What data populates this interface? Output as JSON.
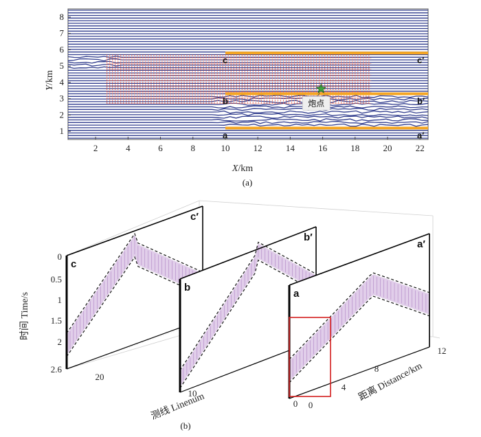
{
  "chart_data": [
    {
      "id": "map",
      "type": "scatter",
      "caption": "(a)",
      "xlabel_var": "X",
      "xlabel_unit": "/km",
      "ylabel_var": "Y",
      "ylabel_unit": "/km",
      "xlim": [
        0.3,
        22.5
      ],
      "ylim": [
        0.5,
        8.5
      ],
      "x_ticks": [
        2,
        4,
        6,
        8,
        10,
        12,
        14,
        16,
        18,
        20,
        22
      ],
      "y_ticks": [
        1,
        2,
        3,
        4,
        5,
        6,
        7,
        8
      ],
      "receiver_line_spacing_km": 0.16,
      "receiver_line_color": "#2e3a8c",
      "source_grid": {
        "x_range": [
          2.7,
          19.0
        ],
        "y_range": [
          2.7,
          5.7
        ],
        "color": "#e8604c"
      },
      "profiles": [
        {
          "label": "a",
          "label_end": "a′",
          "y": 1.2,
          "x_range": [
            10.0,
            22.5
          ]
        },
        {
          "label": "b",
          "label_end": "b′",
          "y": 3.3,
          "x_range": [
            10.0,
            22.5
          ]
        },
        {
          "label": "c",
          "label_end": "c′",
          "y": 5.8,
          "x_range": [
            10.0,
            22.5
          ]
        }
      ],
      "profile_color": "#f5a623",
      "shot_point": {
        "x": 15.9,
        "y": 3.6,
        "label": "炮点",
        "color": "#3fa33f"
      }
    },
    {
      "id": "gathers3d",
      "type": "other",
      "caption": "(b)",
      "zlabel": "时间 Time/s",
      "xlabel": "距离 Distance/km",
      "ylabel": "测线 Linenum",
      "time_ticks": [
        "0",
        "0.5",
        "1",
        "1.5",
        "2",
        "2.6"
      ],
      "distance_ticks": [
        "0",
        "4",
        "8",
        "12"
      ],
      "linenum_ticks": [
        "20",
        "10",
        "0"
      ],
      "panels": [
        {
          "label_start": "c",
          "label_end": "c′"
        },
        {
          "label_start": "b",
          "label_end": "b′"
        },
        {
          "label_start": "a",
          "label_end": "a′"
        }
      ],
      "highlight_box_color": "#d42020"
    }
  ]
}
